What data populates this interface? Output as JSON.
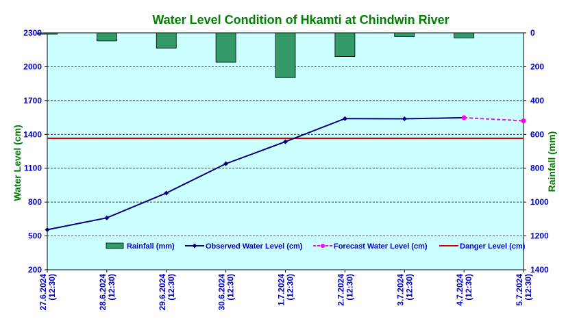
{
  "chart_data": {
    "type": "line",
    "title": "Water Level Condition of Hkamti at Chindwin River",
    "ylabel_left": "Water Level (cm)",
    "ylabel_right": "Rainfall (mm)",
    "ylim_left": [
      200,
      2300
    ],
    "yticks_left": [
      "2300",
      "2000",
      "1700",
      "1400",
      "1100",
      "800",
      "500",
      "200"
    ],
    "ylim_right": [
      0,
      1400
    ],
    "right_axis_inverted": true,
    "yticks_right": [
      "0",
      "200",
      "400",
      "600",
      "800",
      "1000",
      "1200",
      "1400"
    ],
    "categories": [
      [
        "27.6.2024",
        "(12:30)"
      ],
      [
        "28.6.2024",
        "(12:30)"
      ],
      [
        "29.6.2024",
        "(12:30)"
      ],
      [
        "30.6.2024",
        "(12:30)"
      ],
      [
        "1.7.2024",
        "(12:30)"
      ],
      [
        "2.7.2024",
        "(12:30)"
      ],
      [
        "3.7.2024",
        "(12:30)"
      ],
      [
        "4.7.2024",
        "(12:30)"
      ],
      [
        "5.7.2024",
        "(12:30)"
      ]
    ],
    "series": [
      {
        "name": "Rainfall (mm)",
        "axis": "right",
        "kind": "bar",
        "color": "#339966",
        "values": [
          8,
          48,
          90,
          174,
          264,
          140,
          22,
          30,
          null
        ]
      },
      {
        "name": "Observed Water Level (cm)",
        "axis": "left",
        "kind": "line",
        "color": "#000080",
        "values": [
          555,
          660,
          880,
          1140,
          1335,
          1540,
          1538,
          1548,
          null
        ]
      },
      {
        "name": "Forecast Water Level (cm)",
        "axis": "left",
        "kind": "dashed-line",
        "color": "#ff00ff",
        "values": [
          null,
          null,
          null,
          null,
          null,
          null,
          null,
          1548,
          1520
        ]
      },
      {
        "name": "Danger Level (cm)",
        "axis": "left",
        "kind": "constant-line",
        "color": "#cc0000",
        "value": 1365
      }
    ],
    "grid": true,
    "legend_position": "bottom-inside",
    "colors": {
      "plot_background": "#ccffff",
      "title": "#008000",
      "axis_text": "#0000cc"
    }
  }
}
